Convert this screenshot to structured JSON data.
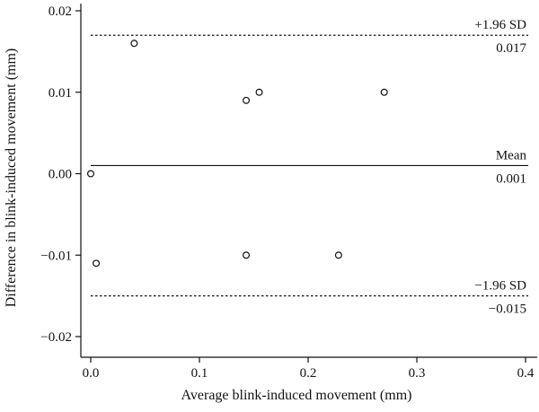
{
  "chart_data": {
    "type": "scatter",
    "title": "",
    "xlabel": "Average blink-induced movement (mm)",
    "ylabel": "Difference in blink-induced movement (mm)",
    "xlim": [
      0.0,
      0.4
    ],
    "ylim": [
      -0.02,
      0.02
    ],
    "x_ticks": [
      0.0,
      0.1,
      0.2,
      0.3,
      0.4
    ],
    "x_tick_labels": [
      "0.0",
      "0.1",
      "0.2",
      "0.3",
      "0.4"
    ],
    "y_ticks": [
      -0.02,
      -0.01,
      0.0,
      0.01,
      0.02
    ],
    "y_tick_labels": [
      "−0.02",
      "−0.01",
      "0.00",
      "0.01",
      "0.02"
    ],
    "grid": false,
    "points": [
      {
        "x": 0.0,
        "y": 0.0
      },
      {
        "x": 0.005,
        "y": -0.011
      },
      {
        "x": 0.04,
        "y": 0.016
      },
      {
        "x": 0.143,
        "y": 0.009
      },
      {
        "x": 0.143,
        "y": -0.01
      },
      {
        "x": 0.155,
        "y": 0.01
      },
      {
        "x": 0.228,
        "y": -0.01
      },
      {
        "x": 0.27,
        "y": 0.01
      }
    ],
    "reference_lines": [
      {
        "id": "upper-loa",
        "y": 0.017,
        "style": "dotted",
        "label": "+1.96 SD",
        "value_label": "0.017"
      },
      {
        "id": "mean",
        "y": 0.001,
        "style": "solid",
        "label": "Mean",
        "value_label": "0.001"
      },
      {
        "id": "lower-loa",
        "y": -0.015,
        "style": "dotted",
        "label": "−1.96 SD",
        "value_label": "−0.015"
      }
    ],
    "colors": {
      "axis": "#111111",
      "marker": "#111111",
      "line": "#111111"
    }
  }
}
